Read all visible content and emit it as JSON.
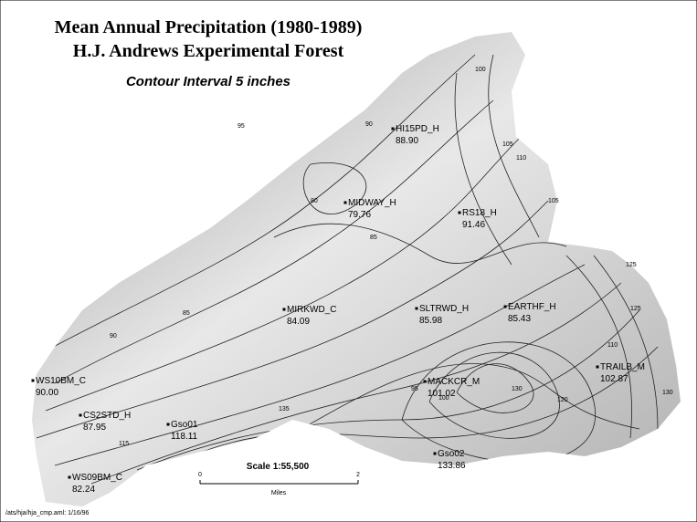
{
  "header": {
    "title_line1": "Mean Annual Precipitation (1980-1989)",
    "title_line2": "H.J. Andrews Experimental Forest",
    "subtitle": "Contour Interval 5 inches"
  },
  "stations": [
    {
      "label": "HI15PD_H",
      "value": "88.90"
    },
    {
      "label": "MIDWAY_H",
      "value": "79.76"
    },
    {
      "label": "RS18_H",
      "value": "91.46"
    },
    {
      "label": "MIRKWD_C",
      "value": "84.09"
    },
    {
      "label": "SLTRWD_H",
      "value": "85.98"
    },
    {
      "label": "EARTHF_H",
      "value": "85.43"
    },
    {
      "label": "MACKCR_M",
      "value": "101.02"
    },
    {
      "label": "TRAILB_M",
      "value": "102.87"
    },
    {
      "label": "WS10BM_C",
      "value": "90.00"
    },
    {
      "label": "CS2STD_H",
      "value": "87.95"
    },
    {
      "label": "Gso01",
      "value": "118.11"
    },
    {
      "label": "Gso02",
      "value": "133.86"
    },
    {
      "label": "WS09BM_C",
      "value": "82.24"
    }
  ],
  "contours": [
    "85",
    "90",
    "95",
    "100",
    "105",
    "110",
    "115",
    "120",
    "125",
    "130",
    "135",
    "80",
    "85",
    "90",
    "95",
    "100",
    "105",
    "110",
    "125",
    "130"
  ],
  "scale": {
    "text": "Scale 1:55,500",
    "start": "0",
    "end": "2",
    "unit": "Miles"
  },
  "footer": "/ats/hja/hja_cmp.aml: 1/16/96"
}
